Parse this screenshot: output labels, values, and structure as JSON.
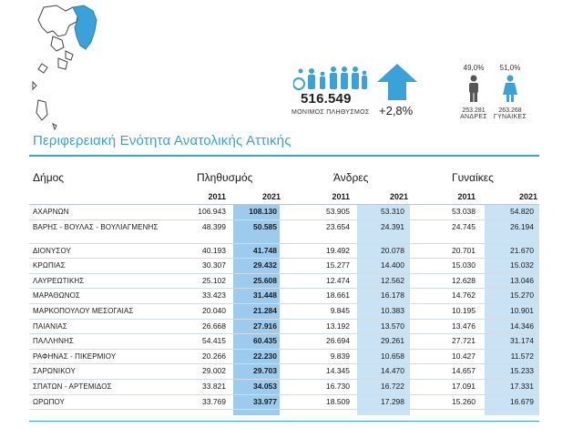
{
  "summary": {
    "population": "516.549",
    "population_label": "ΜΟΝΙΜΟΣ ΠΛΗΘΥΣΜΟΣ",
    "growth": "+2,8%",
    "men_pct": "49,0%",
    "women_pct": "51,0%",
    "men_count": "253.281",
    "women_count": "263.268",
    "men_label": "ΑΝΔΡΕΣ",
    "women_label": "ΓΥΝΑΙΚΕΣ"
  },
  "colors": {
    "accent": "#3aa2d8",
    "pop_column": "#9ccbee",
    "light_column": "#c9e2f4"
  },
  "region_title": "Περιφερειακή Ενότητα Ανατολικής Αττικής",
  "table": {
    "headers": {
      "dimos": "Δήμος",
      "population": "Πληθυσμός",
      "men": "Άνδρες",
      "women": "Γυναίκες"
    },
    "years": [
      "2011",
      "2021",
      "2011",
      "2021",
      "2011",
      "2021"
    ],
    "rows": [
      {
        "name": "ΑΧΑΡΝΩΝ",
        "v": [
          "106.943",
          "108.130",
          "53.905",
          "53.310",
          "53.038",
          "54.820"
        ]
      },
      {
        "name": "ΒΑΡΗΣ - ΒΟΥΛΑΣ - ΒΟΥΛΙΑΓΜΕΝΗΣ",
        "v": [
          "48.399",
          "50.585",
          "23.654",
          "24.391",
          "24.745",
          "26.194"
        ]
      },
      {
        "name": "ΔΙΟΝΥΣΟΥ",
        "v": [
          "40.193",
          "41.748",
          "19.492",
          "20.078",
          "20.701",
          "21.670"
        ]
      },
      {
        "name": "ΚΡΩΠΙΑΣ",
        "v": [
          "30.307",
          "29.432",
          "15.277",
          "14.400",
          "15.030",
          "15.032"
        ]
      },
      {
        "name": "ΛΑΥΡΕΩΤΙΚΗΣ",
        "v": [
          "25.102",
          "25.608",
          "12.474",
          "12.562",
          "12.628",
          "13.046"
        ]
      },
      {
        "name": "ΜΑΡΑΘΩΝΟΣ",
        "v": [
          "33.423",
          "31.448",
          "18.661",
          "16.178",
          "14.762",
          "15.270"
        ]
      },
      {
        "name": "ΜΑΡΚΟΠΟΥΛΟΥ ΜΕΣΟΓΑΙΑΣ",
        "v": [
          "20.040",
          "21.284",
          "9.845",
          "10.383",
          "10.195",
          "10.901"
        ]
      },
      {
        "name": "ΠΑΙΑΝΙΑΣ",
        "v": [
          "26.668",
          "27.916",
          "13.192",
          "13.570",
          "13.476",
          "14.346"
        ]
      },
      {
        "name": "ΠΑΛΛΗΝΗΣ",
        "v": [
          "54.415",
          "60.435",
          "26.694",
          "29.261",
          "27.721",
          "31.174"
        ]
      },
      {
        "name": "ΡΑΦΗΝΑΣ - ΠΙΚΕΡΜΙΟΥ",
        "v": [
          "20.266",
          "22.230",
          "9.839",
          "10.658",
          "10.427",
          "11.572"
        ]
      },
      {
        "name": "ΣΑΡΩΝΙΚΟΥ",
        "v": [
          "29.002",
          "29.703",
          "14.345",
          "14.470",
          "14.657",
          "15.233"
        ]
      },
      {
        "name": "ΣΠΑΤΩΝ - ΑΡΤΕΜΙΔΟΣ",
        "v": [
          "33.821",
          "34.053",
          "16.730",
          "16.722",
          "17.091",
          "17.331"
        ]
      },
      {
        "name": "ΩΡΩΠΟΥ",
        "v": [
          "33.769",
          "33.977",
          "18.509",
          "17.298",
          "15.260",
          "16.679"
        ]
      }
    ]
  }
}
